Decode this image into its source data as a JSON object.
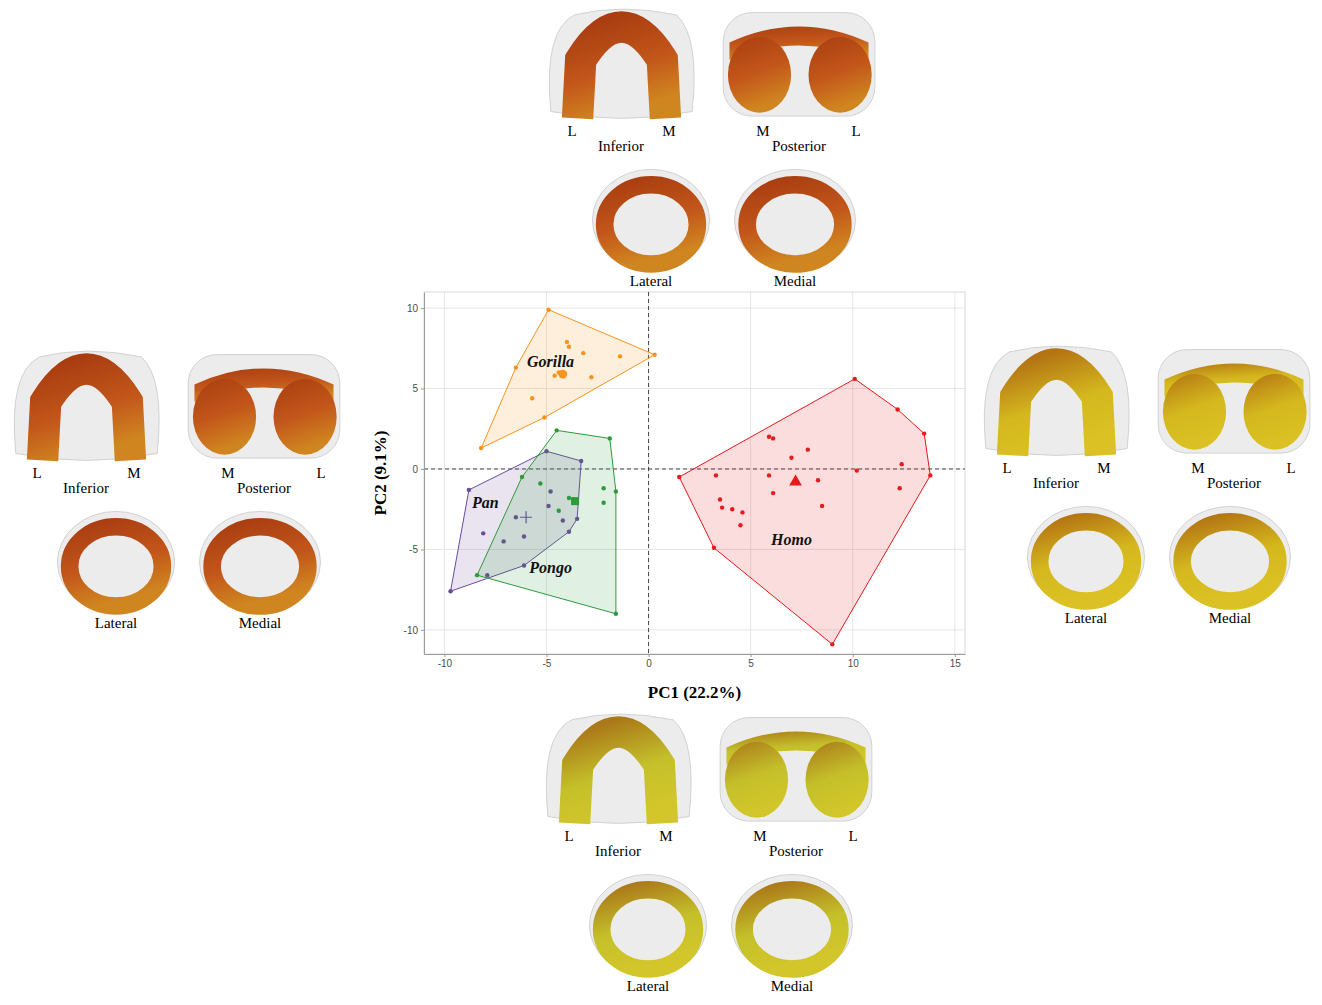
{
  "chart_data": {
    "type": "scatter",
    "x_label": "PC1 (22.2%)",
    "y_label": "PC2 (9.1%)",
    "xlim": [
      -11,
      15.5
    ],
    "ylim": [
      -11.5,
      11
    ],
    "xticks": [
      -10,
      -5,
      0,
      5,
      10,
      15
    ],
    "yticks": [
      -10,
      -5,
      0,
      5,
      10
    ],
    "grid": true,
    "vlines": [
      0
    ],
    "hlines": [
      0
    ],
    "series": [
      {
        "name": "Gorilla",
        "color": "#f7941d",
        "marker": "circle",
        "x": [
          -4.9,
          0.3,
          -8.2,
          -5.1,
          -6.5,
          -5.7,
          -4.0,
          -3.9,
          -3.2,
          -1.4,
          -4.6,
          -2.8,
          -4.4
        ],
        "y": [
          9.9,
          7.1,
          1.3,
          3.2,
          6.3,
          4.4,
          7.9,
          7.6,
          7.2,
          7.0,
          5.8,
          5.7,
          6.0
        ],
        "mean_x": -4.2,
        "mean_y": 5.9,
        "label_x": -4.8,
        "label_y": 6.35
      },
      {
        "name": "Pan",
        "color": "#6a4c9c",
        "marker": "plus",
        "x": [
          -8.8,
          -5.0,
          -3.3,
          -3.5,
          -3.9,
          -6.1,
          -7.9,
          -9.7,
          -8.1,
          -6.5,
          -7.1,
          -6.1,
          -4.8,
          -4.9,
          -4.2
        ],
        "y": [
          -1.3,
          1.1,
          0.5,
          -3.1,
          -3.9,
          -6.0,
          -6.6,
          -7.6,
          -4.0,
          -3.0,
          -4.5,
          -4.2,
          -1.4,
          -2.3,
          -3.2
        ],
        "mean_x": -6.0,
        "mean_y": -3.0,
        "label_x": -8.0,
        "label_y": -2.4
      },
      {
        "name": "Pongo",
        "color": "#2e9a3b",
        "marker": "square",
        "x": [
          -4.5,
          -1.9,
          -1.6,
          -1.6,
          -8.4,
          -6.2,
          -3.9,
          -3.7,
          -2.2,
          -2.2,
          -4.4,
          -5.3
        ],
        "y": [
          2.4,
          1.9,
          -1.4,
          -9.0,
          -6.6,
          -0.5,
          -1.8,
          -1.9,
          -1.2,
          -2.1,
          -2.6,
          -0.9
        ],
        "mean_x": -3.6,
        "mean_y": -2.0,
        "label_x": -4.8,
        "label_y": -6.45
      },
      {
        "name": "Homo",
        "color": "#e41a1c",
        "marker": "triangle",
        "x": [
          1.5,
          10.1,
          12.2,
          13.5,
          13.8,
          9.0,
          3.2,
          5.9,
          6.1,
          7.8,
          7.0,
          5.9,
          3.3,
          3.5,
          3.6,
          4.1,
          4.6,
          4.5,
          6.1,
          8.3,
          8.5,
          10.2,
          12.3,
          12.4
        ],
        "y": [
          -0.5,
          5.6,
          3.7,
          2.2,
          -0.4,
          -10.9,
          -4.9,
          2.0,
          1.9,
          1.2,
          0.7,
          -0.4,
          -0.4,
          -1.9,
          -2.4,
          -2.5,
          -2.7,
          -3.5,
          -1.5,
          -0.7,
          -2.3,
          -0.1,
          -1.2,
          0.3
        ],
        "mean_x": 7.2,
        "mean_y": -0.8,
        "label_x": 7.0,
        "label_y": -4.7
      }
    ],
    "renderings": [
      {
        "color": "#c2561a",
        "views": [
          {
            "title": "Inferior",
            "left": "L",
            "right": "M"
          },
          {
            "title": "Posterior",
            "left": "M",
            "right": "L"
          },
          {
            "title": "Lateral"
          },
          {
            "title": "Medial"
          }
        ]
      },
      {
        "color": "#c2561a",
        "views": [
          {
            "title": "Inferior",
            "left": "L",
            "right": "M"
          },
          {
            "title": "Posterior",
            "left": "M",
            "right": "L"
          },
          {
            "title": "Lateral"
          },
          {
            "title": "Medial"
          }
        ]
      },
      {
        "color": "#d4b81e",
        "views": [
          {
            "title": "Inferior",
            "left": "L",
            "right": "M"
          },
          {
            "title": "Posterior",
            "left": "M",
            "right": "L"
          },
          {
            "title": "Lateral"
          },
          {
            "title": "Medial"
          }
        ]
      },
      {
        "color": "#c4c02a",
        "views": [
          {
            "title": "Inferior",
            "left": "L",
            "right": "M"
          },
          {
            "title": "Posterior",
            "left": "M",
            "right": "L"
          },
          {
            "title": "Lateral"
          },
          {
            "title": "Medial"
          }
        ]
      }
    ]
  }
}
